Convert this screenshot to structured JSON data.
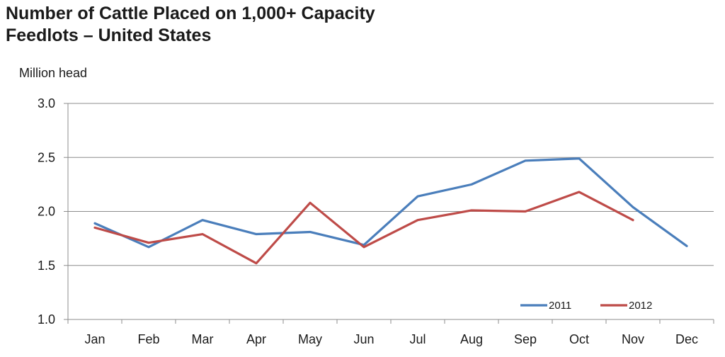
{
  "chart_data": {
    "type": "line",
    "title_line1": "Number of Cattle Placed on 1,000+ Capacity",
    "title_line2": "Feedlots – United States",
    "ylabel": "Million head",
    "xlabel": "",
    "categories": [
      "Jan",
      "Feb",
      "Mar",
      "Apr",
      "May",
      "Jun",
      "Jul",
      "Aug",
      "Sep",
      "Oct",
      "Nov",
      "Dec"
    ],
    "ylim": [
      1.0,
      3.0
    ],
    "yticks": [
      "1.0",
      "1.5",
      "2.0",
      "2.5",
      "3.0"
    ],
    "grid": true,
    "legend_position": "bottom-right",
    "series": [
      {
        "name": "2011",
        "color": "#4a7ebb",
        "values": [
          1.89,
          1.67,
          1.92,
          1.79,
          1.81,
          1.69,
          2.14,
          2.25,
          2.47,
          2.49,
          2.04,
          1.68
        ]
      },
      {
        "name": "2012",
        "color": "#be4b48",
        "values": [
          1.85,
          1.71,
          1.79,
          1.52,
          2.08,
          1.67,
          1.92,
          2.01,
          2.0,
          2.18,
          1.92,
          null
        ]
      }
    ]
  }
}
